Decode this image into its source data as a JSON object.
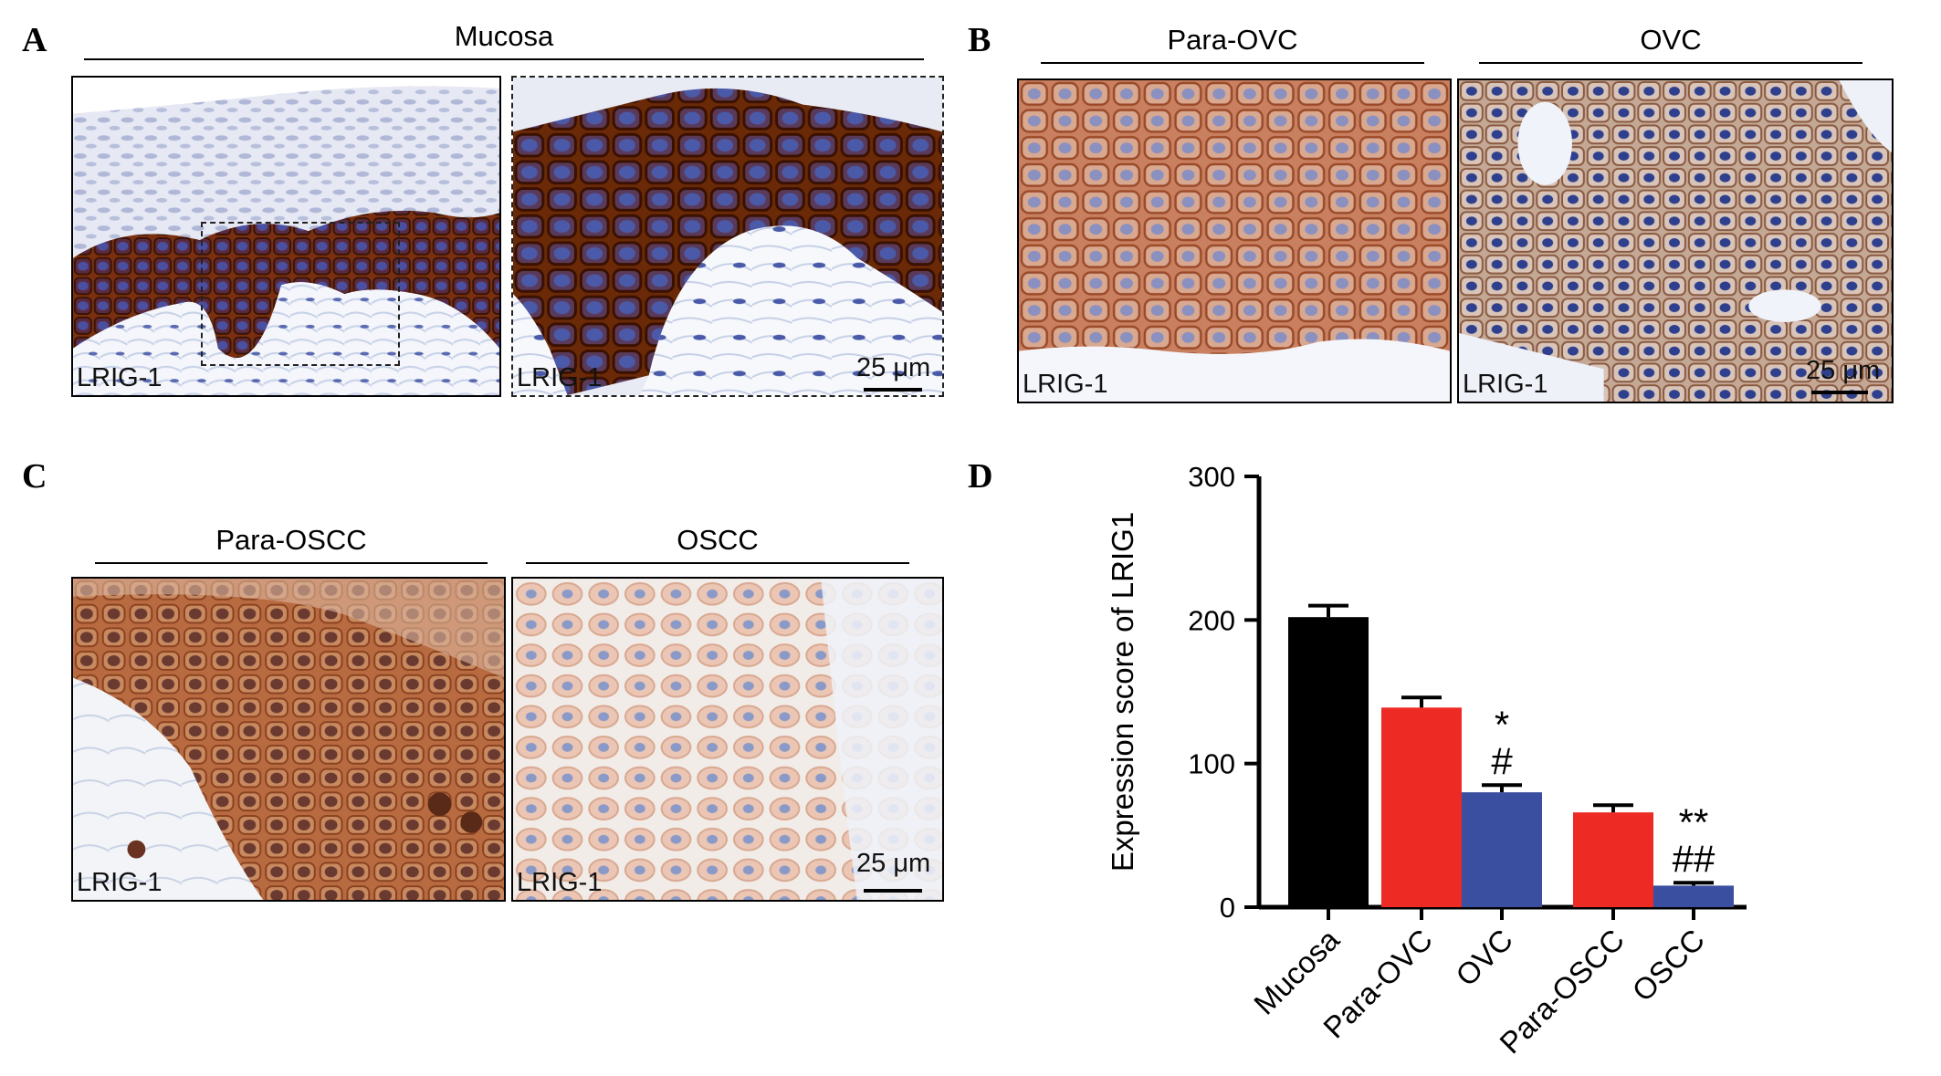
{
  "panels": {
    "A": {
      "letter": "A",
      "group_label": "Mucosa",
      "images": [
        {
          "label": "LRIG-1",
          "stain": "dark-brown-basal",
          "scale": ""
        },
        {
          "label": "LRIG-1",
          "stain": "dark-brown-basal-zoom",
          "scale": "25 μm"
        }
      ]
    },
    "B": {
      "letter": "B",
      "groups": [
        {
          "group_label": "Para-OVC",
          "label": "LRIG-1",
          "stain": "medium-brown",
          "scale": ""
        },
        {
          "group_label": "OVC",
          "label": "LRIG-1",
          "stain": "blue-nuclei-light-brown",
          "scale": "25 μm"
        }
      ]
    },
    "C": {
      "letter": "C",
      "groups": [
        {
          "group_label": "Para-OSCC",
          "label": "LRIG-1",
          "stain": "orange-brown-gradient",
          "scale": ""
        },
        {
          "group_label": "OSCC",
          "label": "LRIG-1",
          "stain": "pale-pink-blue",
          "scale": "25 μm"
        }
      ]
    },
    "D": {
      "letter": "D"
    }
  },
  "colors": {
    "black_bar": "#000000",
    "red_bar": "#ee2a24",
    "blue_bar": "#3a4fa0",
    "stain_brown": "#8a3a12",
    "nuclei_blue": "#4a5aa8"
  },
  "chart_data": {
    "type": "bar",
    "categories": [
      "Mucosa",
      "Para-OVC",
      "OVC",
      "Para-OSCC",
      "OSCC"
    ],
    "values": [
      202,
      139,
      80,
      66,
      15
    ],
    "errors": [
      8,
      7,
      5,
      5,
      2
    ],
    "bar_colors": [
      "#000000",
      "#ee2a24",
      "#3a4fa0",
      "#ee2a24",
      "#3a4fa0"
    ],
    "annotations": [
      {
        "category": "OVC",
        "lines": [
          "*",
          "#"
        ]
      },
      {
        "category": "OSCC",
        "lines": [
          "**",
          "##"
        ]
      }
    ],
    "title": "",
    "xlabel": "",
    "ylabel": "Expression score of LRIG1",
    "ylim": [
      0,
      300
    ],
    "yticks": [
      0,
      100,
      200,
      300
    ],
    "grid": false
  }
}
